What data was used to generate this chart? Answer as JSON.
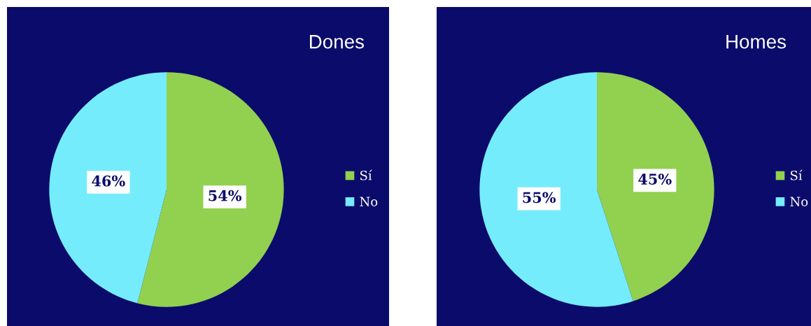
{
  "chart_data": [
    {
      "type": "pie",
      "title": "Dones",
      "categories": [
        "Sí",
        "No"
      ],
      "values": [
        54,
        46
      ],
      "colors": [
        "#92d050",
        "#75ecfc"
      ],
      "data_labels": true,
      "value_labels": [
        "54%",
        "46%"
      ],
      "legend": "right"
    },
    {
      "type": "pie",
      "title": "Homes",
      "categories": [
        "Sí",
        "No"
      ],
      "values": [
        45,
        55
      ],
      "colors": [
        "#92d050",
        "#75ecfc"
      ],
      "data_labels": true,
      "value_labels": [
        "45%",
        "55%"
      ],
      "legend": "right"
    }
  ]
}
